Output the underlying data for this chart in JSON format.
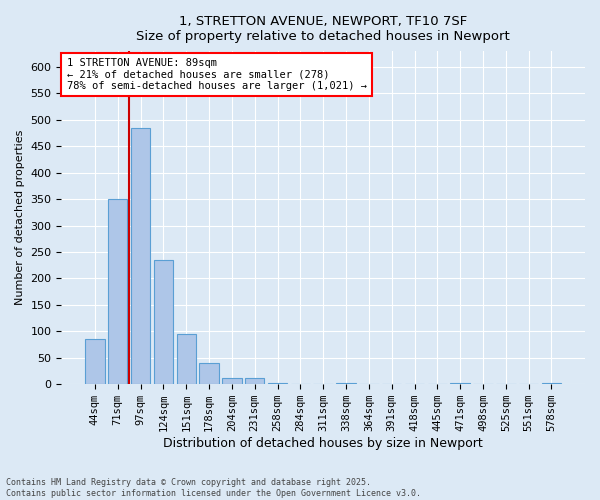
{
  "title1": "1, STRETTON AVENUE, NEWPORT, TF10 7SF",
  "title2": "Size of property relative to detached houses in Newport",
  "xlabel": "Distribution of detached houses by size in Newport",
  "ylabel": "Number of detached properties",
  "categories": [
    "44sqm",
    "71sqm",
    "97sqm",
    "124sqm",
    "151sqm",
    "178sqm",
    "204sqm",
    "231sqm",
    "258sqm",
    "284sqm",
    "311sqm",
    "338sqm",
    "364sqm",
    "391sqm",
    "418sqm",
    "445sqm",
    "471sqm",
    "498sqm",
    "525sqm",
    "551sqm",
    "578sqm"
  ],
  "values": [
    85,
    350,
    485,
    235,
    95,
    40,
    12,
    12,
    3,
    0,
    0,
    3,
    0,
    0,
    0,
    0,
    3,
    0,
    0,
    0,
    3
  ],
  "bar_color": "#aec6e8",
  "bar_edge_color": "#5a9fd4",
  "vline_x": 1.5,
  "vline_color": "#cc0000",
  "annotation_box_text": "1 STRETTON AVENUE: 89sqm\n← 21% of detached houses are smaller (278)\n78% of semi-detached houses are larger (1,021) →",
  "bg_color": "#dce9f5",
  "plot_bg_color": "#dce9f5",
  "grid_color": "#ffffff",
  "footer_text": "Contains HM Land Registry data © Crown copyright and database right 2025.\nContains public sector information licensed under the Open Government Licence v3.0.",
  "ylim": [
    0,
    630
  ],
  "yticks": [
    0,
    50,
    100,
    150,
    200,
    250,
    300,
    350,
    400,
    450,
    500,
    550,
    600
  ]
}
